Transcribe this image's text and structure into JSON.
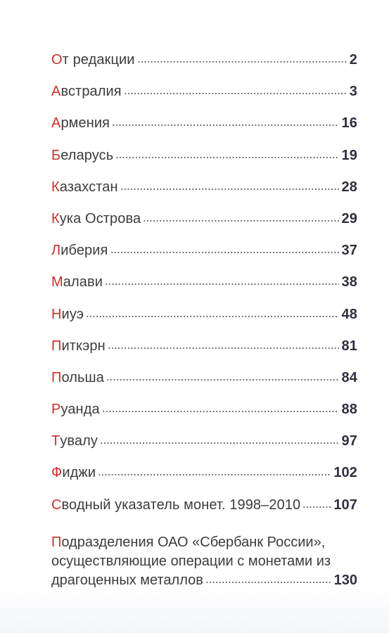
{
  "toc": {
    "accent_color": "#c9302c",
    "entries": [
      {
        "first": "О",
        "rest": "т редакции",
        "page": "2"
      },
      {
        "first": "А",
        "rest": "встралия",
        "page": "3"
      },
      {
        "first": "А",
        "rest": "рмения",
        "page": "16"
      },
      {
        "first": "Б",
        "rest": "еларусь",
        "page": "19"
      },
      {
        "first": "К",
        "rest": "азахстан",
        "page": "28"
      },
      {
        "first": "К",
        "rest": "ука Острова",
        "page": "29"
      },
      {
        "first": "Л",
        "rest": "иберия",
        "page": "37"
      },
      {
        "first": "М",
        "rest": "алави",
        "page": "38"
      },
      {
        "first": "Н",
        "rest": "иуэ",
        "page": "48"
      },
      {
        "first": "П",
        "rest": "иткэрн",
        "page": "81"
      },
      {
        "first": "П",
        "rest": "ольша",
        "page": "84"
      },
      {
        "first": "Р",
        "rest": "уанда",
        "page": "88"
      },
      {
        "first": "Т",
        "rest": "увалу",
        "page": "97"
      },
      {
        "first": "Ф",
        "rest": "иджи",
        "page": "102"
      },
      {
        "first": "С",
        "rest": "водный указатель монет. 1998–2010",
        "page": "107"
      }
    ],
    "last_entry": {
      "first": "П",
      "line1_rest": "одразделения ОАО «Сбербанк России»,",
      "line2": "осуществляющие операции с монетами из",
      "line3": "драгоценных металлов",
      "page": "130"
    }
  }
}
